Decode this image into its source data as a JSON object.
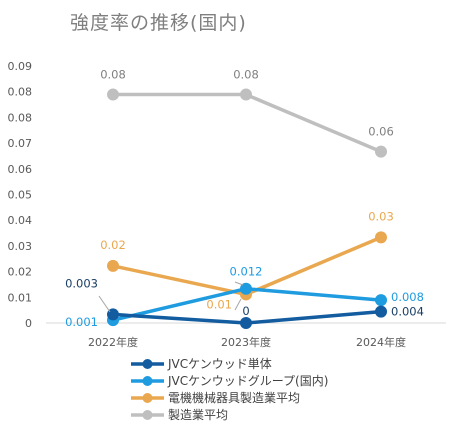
{
  "chart_data": {
    "type": "line",
    "title": "強度率の推移(国内)",
    "categories": [
      "2022年度",
      "2023年度",
      "2024年度"
    ],
    "ylim": [
      0,
      0.09
    ],
    "yticks": [
      "0",
      "0.01",
      "0.02",
      "0.03",
      "0.04",
      "0.05",
      "0.06",
      "0.07",
      "0.08",
      "0.08",
      "0.09"
    ],
    "grid": false,
    "legend_position": "bottom",
    "series": [
      {
        "name": "JVCケンウッド単体",
        "values": [
          0.003,
          0,
          0.004
        ],
        "labels": [
          "0.003",
          "0",
          "0.004"
        ],
        "color": "#125c9f"
      },
      {
        "name": "JVCケンウッドグループ(国内)",
        "values": [
          0.001,
          0.012,
          0.008
        ],
        "labels": [
          "0.001",
          "0.012",
          "0.008"
        ],
        "color": "#1f9be0"
      },
      {
        "name": "電機機械器具製造業平均",
        "values": [
          0.02,
          0.01,
          0.03
        ],
        "labels": [
          "0.02",
          "0.01",
          "0.03"
        ],
        "color": "#e9a84f"
      },
      {
        "name": "製造業平均",
        "values": [
          0.08,
          0.08,
          0.06
        ],
        "labels": [
          "0.08",
          "0.08",
          "0.06"
        ],
        "color": "#bfbfbf"
      }
    ]
  }
}
